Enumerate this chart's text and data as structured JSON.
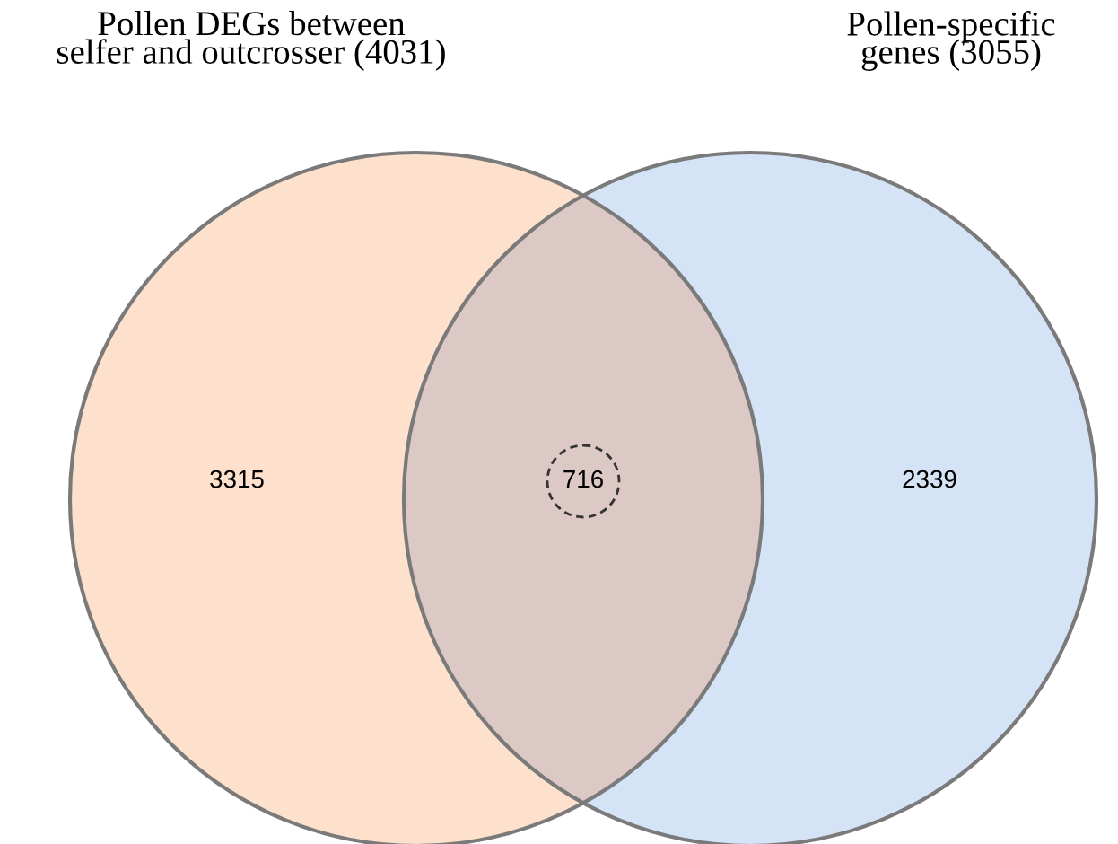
{
  "chart_data": {
    "type": "other",
    "categories": [
      null,
      null,
      null
    ],
    "values": [
      3315,
      716,
      2339
    ],
    "colors": [
      "#fde1cc",
      "#dcc8c4",
      "#d5e3f7"
    ],
    "data_labels": true,
    "annotations": [
      "Pollen DEGs between\nselfer and outcrosser (4031)",
      "Pollen-specific\ngenes (3055)"
    ]
  }
}
